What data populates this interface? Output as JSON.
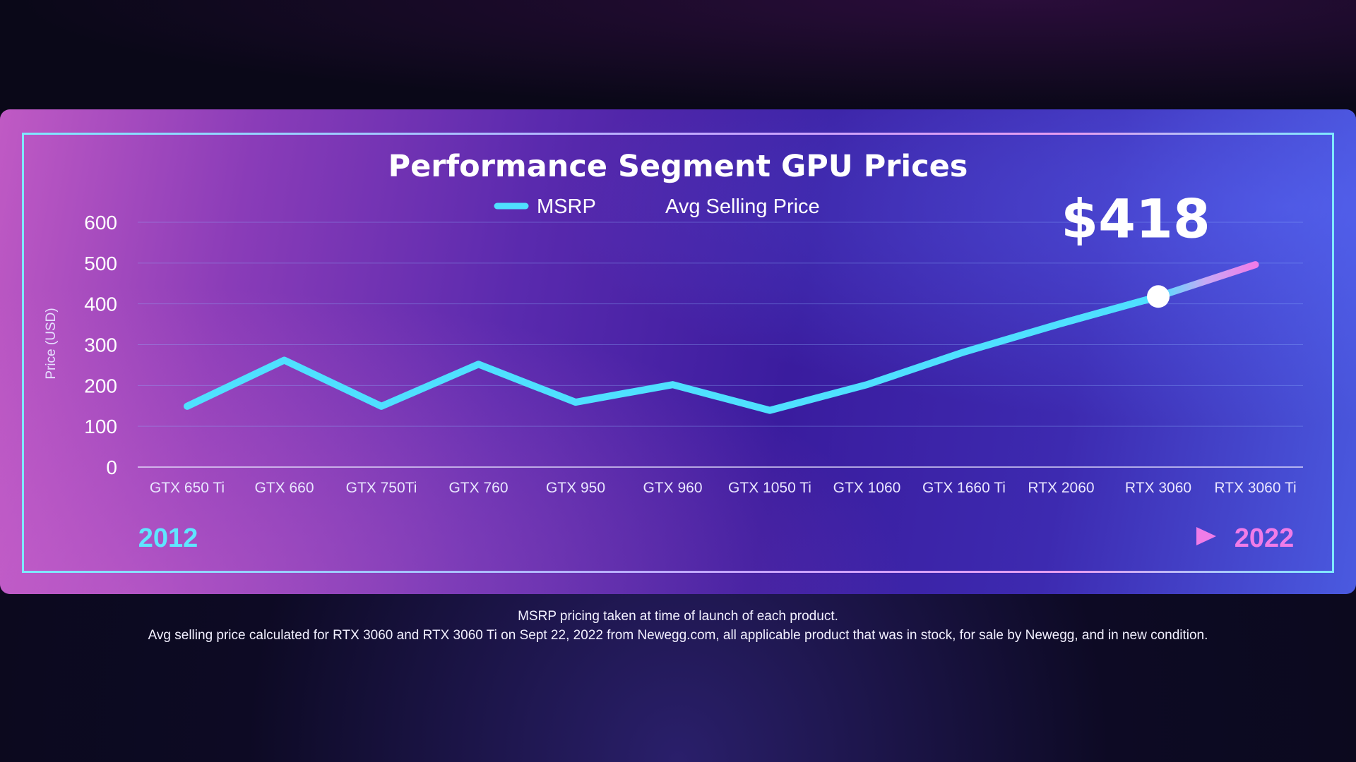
{
  "chart_data": {
    "type": "line",
    "title": "Performance Segment GPU Prices",
    "ylabel": "Price (USD)",
    "ylim": [
      0,
      600
    ],
    "yticks": [
      0,
      100,
      200,
      300,
      400,
      500,
      600
    ],
    "grid": true,
    "legend_position": "top-center",
    "categories": [
      "GTX 650 Ti",
      "GTX 660",
      "GTX 750Ti",
      "GTX 760",
      "GTX 950",
      "GTX 960",
      "GTX 1050 Ti",
      "GTX 1060",
      "GTX 1660 Ti",
      "RTX 2060",
      "RTX 3060",
      "RTX 3060 Ti"
    ],
    "series": [
      {
        "name": "MSRP",
        "values": [
          149,
          262,
          149,
          252,
          159,
          202,
          139,
          202,
          282,
          352,
          418,
          499
        ],
        "color": "#4fe0ff"
      },
      {
        "name": "Avg Selling Price",
        "values": [
          null,
          null,
          null,
          null,
          null,
          null,
          null,
          null,
          null,
          null,
          418,
          496
        ],
        "color": "#f07ce8"
      }
    ],
    "annotation": {
      "text": "$418",
      "category": "RTX 3060",
      "value": 418
    },
    "timeline": {
      "start": "2012",
      "end": "2022"
    }
  },
  "footnotes": [
    "MSRP pricing taken at time of launch of each product.",
    "Avg selling price calculated for RTX 3060 and RTX 3060 Ti on Sept 22, 2022 from Newegg.com, all applicable product that was in stock, for sale by Newegg, and in new condition."
  ],
  "colors": {
    "msrp": "#4fe0ff",
    "asp": "#f07ce8",
    "grid": "#8fb4ff",
    "text": "#ffffff"
  }
}
